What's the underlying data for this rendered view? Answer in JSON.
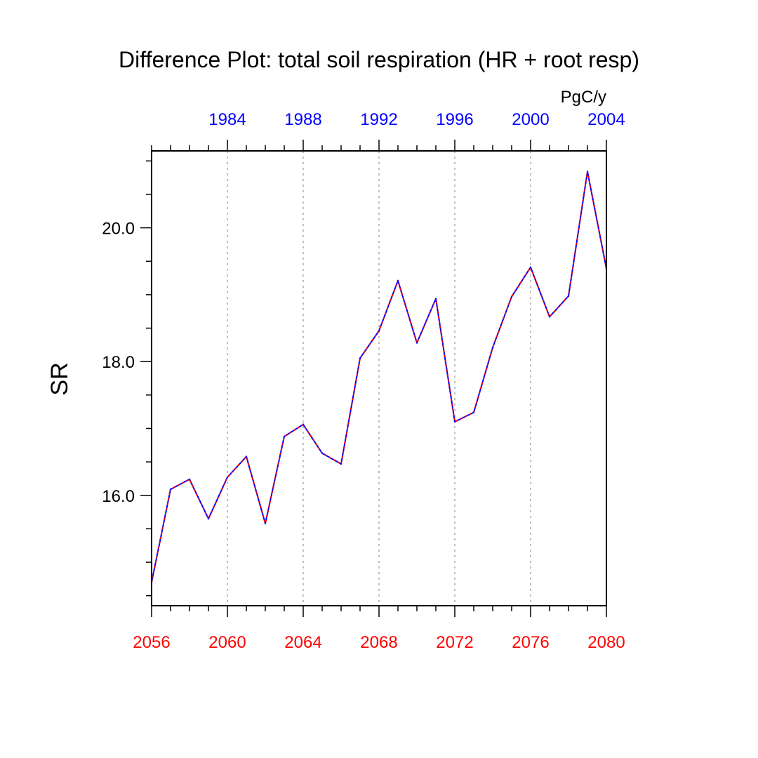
{
  "chart_data": {
    "type": "line",
    "title": "Difference Plot: total soil respiration (HR + root resp)",
    "ylabel": "SR",
    "units": "PgC/y",
    "x": [
      2056,
      2057,
      2058,
      2059,
      2060,
      2061,
      2062,
      2063,
      2064,
      2065,
      2066,
      2067,
      2068,
      2069,
      2070,
      2071,
      2072,
      2073,
      2074,
      2075,
      2076,
      2077,
      2078,
      2079,
      2080
    ],
    "xlim": [
      2056,
      2080
    ],
    "xticks_bottom": [
      "2056",
      "2060",
      "2064",
      "2068",
      "2072",
      "2076",
      "2080"
    ],
    "xticks_top": [
      "1984",
      "1988",
      "1992",
      "1996",
      "2000",
      "2004"
    ],
    "top_axis_offset_years": -76,
    "ylim": [
      14.35,
      21.15
    ],
    "yticks": [
      "16.0",
      "18.0",
      "20.0"
    ],
    "series": [
      {
        "values": [
          14.7,
          16.09,
          16.24,
          15.65,
          16.27,
          16.58,
          15.58,
          16.88,
          17.06,
          16.63,
          16.47,
          18.05,
          18.46,
          19.21,
          18.28,
          18.94,
          17.1,
          17.24,
          18.21,
          18.97,
          19.41,
          18.67,
          18.98,
          20.84,
          19.39
        ]
      }
    ],
    "colors": {
      "line_primary": "#0000ff",
      "line_dash": "#ff0000",
      "bottom_axis": "#ff0000",
      "top_axis": "#0000ff",
      "grid": "#aaaaaa"
    },
    "grid": "vertical dashed at major x ticks"
  }
}
